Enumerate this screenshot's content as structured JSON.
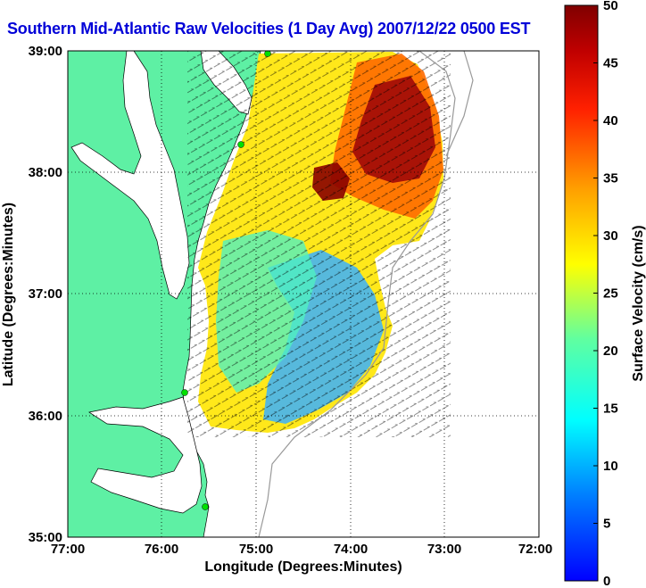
{
  "title": "Southern Mid-Atlantic Raw Velocities (1 Day Avg) 2007/12/22 0500 EST",
  "map": {
    "xlabel": "Longitude (Degrees:Minutes)",
    "ylabel": "Latitude (Degrees:Minutes)",
    "x_ticks": [
      "77:00",
      "76:00",
      "75:00",
      "74:00",
      "73:00",
      "72:00"
    ],
    "y_ticks": [
      "39:00",
      "38:00",
      "37:00",
      "36:00",
      "35:00"
    ],
    "land_color": "#5ef0a4",
    "water_color": "#ffffff",
    "grid": "dotted"
  },
  "colorbar": {
    "label": "Surface Velocity (cm/s)",
    "ticks": [
      "50",
      "45",
      "40",
      "35",
      "30",
      "25",
      "20",
      "15",
      "10",
      "5",
      "0"
    ],
    "range": [
      0,
      50
    ],
    "colors": [
      "#0000ff",
      "#00a0ff",
      "#00ffff",
      "#80ff80",
      "#ffff00",
      "#ffa000",
      "#ff3000",
      "#b00000",
      "#800000"
    ]
  }
}
